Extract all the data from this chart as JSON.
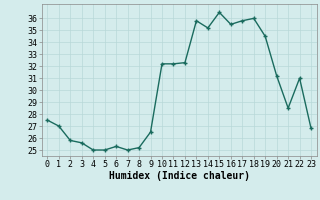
{
  "x": [
    0,
    1,
    2,
    3,
    4,
    5,
    6,
    7,
    8,
    9,
    10,
    11,
    12,
    13,
    14,
    15,
    16,
    17,
    18,
    19,
    20,
    21,
    22,
    23
  ],
  "y": [
    27.5,
    27.0,
    25.8,
    25.6,
    25.0,
    25.0,
    25.3,
    25.0,
    25.2,
    26.5,
    32.2,
    32.2,
    32.3,
    35.8,
    35.2,
    36.5,
    35.5,
    35.8,
    36.0,
    34.5,
    31.2,
    28.5,
    31.0,
    26.8
  ],
  "xlabel": "Humidex (Indice chaleur)",
  "ylim": [
    24.5,
    37.2
  ],
  "xlim": [
    -0.5,
    23.5
  ],
  "yticks": [
    25,
    26,
    27,
    28,
    29,
    30,
    31,
    32,
    33,
    34,
    35,
    36
  ],
  "xticks": [
    0,
    1,
    2,
    3,
    4,
    5,
    6,
    7,
    8,
    9,
    10,
    11,
    12,
    13,
    14,
    15,
    16,
    17,
    18,
    19,
    20,
    21,
    22,
    23
  ],
  "line_color": "#1a6b5e",
  "marker": "+",
  "marker_size": 3.5,
  "line_width": 1.0,
  "bg_color": "#d4ecec",
  "grid_color": "#b8d8d8",
  "xlabel_fontsize": 7,
  "tick_fontsize": 6,
  "fig_width": 3.2,
  "fig_height": 2.0,
  "dpi": 100
}
